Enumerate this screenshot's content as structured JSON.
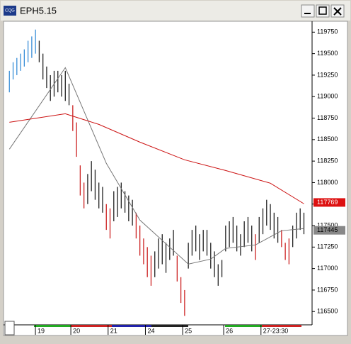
{
  "window": {
    "app_icon": "CQG",
    "title": "EPH5.15"
  },
  "chart_data": {
    "type": "range_bar",
    "x": [
      0,
      1,
      2,
      3,
      4,
      5,
      6,
      7,
      8,
      9,
      10,
      11,
      12,
      13,
      14,
      15,
      16,
      17,
      18,
      19,
      20,
      21,
      22,
      23,
      24,
      25,
      26,
      27,
      28,
      29,
      30,
      31,
      32,
      33,
      34,
      35,
      36,
      37,
      38,
      39,
      40,
      41,
      42,
      43,
      44,
      45,
      46,
      47,
      48,
      49,
      50,
      51,
      52,
      53,
      54,
      55,
      56,
      57,
      58,
      59,
      60,
      61,
      62,
      63,
      64,
      65,
      66,
      67,
      68,
      69,
      70,
      71,
      72,
      73,
      74,
      75,
      76,
      77,
      78,
      79
    ],
    "highs": [
      119300,
      119400,
      119450,
      119500,
      119550,
      119650,
      119700,
      119780,
      119650,
      119500,
      119350,
      119250,
      119300,
      119300,
      119250,
      119300,
      119150,
      118900,
      118700,
      118200,
      118000,
      118100,
      118250,
      118150,
      118000,
      117950,
      117750,
      117700,
      117900,
      117950,
      118000,
      117900,
      117850,
      117800,
      117650,
      117500,
      117350,
      117250,
      117150,
      117200,
      117350,
      117400,
      117300,
      117350,
      117450,
      117150,
      116900,
      116750,
      117300,
      117450,
      117500,
      117400,
      117450,
      117450,
      117300,
      117200,
      117050,
      117100,
      117500,
      117550,
      117600,
      117500,
      117400,
      117550,
      117600,
      117500,
      117400,
      117600,
      117700,
      117800,
      117750,
      117650,
      117600,
      117450,
      117300,
      117350,
      117500,
      117650,
      117700,
      117650
    ],
    "lows": [
      119050,
      119200,
      119250,
      119300,
      119350,
      119400,
      119450,
      119500,
      119400,
      119200,
      119100,
      118950,
      119000,
      119050,
      119000,
      118950,
      118900,
      118600,
      118300,
      117850,
      117700,
      117750,
      117900,
      117800,
      117700,
      117650,
      117450,
      117350,
      117550,
      117600,
      117700,
      117650,
      117550,
      117500,
      117350,
      117150,
      117050,
      116900,
      116800,
      116900,
      117000,
      117050,
      116950,
      117100,
      117150,
      116850,
      116600,
      116450,
      117000,
      117150,
      117200,
      117100,
      117200,
      117150,
      117000,
      116900,
      116800,
      116900,
      117200,
      117250,
      117300,
      117200,
      117150,
      117250,
      117300,
      117200,
      117100,
      117300,
      117400,
      117500,
      117450,
      117350,
      117300,
      117250,
      117100,
      117050,
      117250,
      117350,
      117450,
      117400
    ],
    "bar_colors": [
      "#3a8fd8",
      "#3a8fd8",
      "#3a8fd8",
      "#3a8fd8",
      "#3a8fd8",
      "#3a8fd8",
      "#3a8fd8",
      "#3a8fd8",
      "#222",
      "#222",
      "#222",
      "#222",
      "#222",
      "#222",
      "#222",
      "#222",
      "#222",
      "#cc2222",
      "#cc2222",
      "#cc2222",
      "#cc2222",
      "#222",
      "#222",
      "#222",
      "#222",
      "#222",
      "#cc2222",
      "#cc2222",
      "#222",
      "#222",
      "#222",
      "#222",
      "#222",
      "#222",
      "#cc2222",
      "#cc2222",
      "#cc2222",
      "#cc2222",
      "#cc2222",
      "#222",
      "#222",
      "#222",
      "#222",
      "#222",
      "#222",
      "#cc2222",
      "#cc2222",
      "#cc2222",
      "#222",
      "#222",
      "#222",
      "#222",
      "#222",
      "#222",
      "#222",
      "#222",
      "#222",
      "#222",
      "#222",
      "#222",
      "#222",
      "#222",
      "#222",
      "#222",
      "#222",
      "#222",
      "#cc2222",
      "#222",
      "#222",
      "#222",
      "#222",
      "#222",
      "#222",
      "#cc2222",
      "#cc2222",
      "#cc2222",
      "#222",
      "#222",
      "#222",
      "#222"
    ],
    "lines": [
      {
        "color": "#777777",
        "x": [
          0,
          15,
          26,
          35,
          48,
          54,
          58,
          66,
          73,
          79
        ],
        "values": [
          118389,
          119337,
          118224,
          117564,
          117052,
          117110,
          117234,
          117275,
          117440,
          117465
        ]
      },
      {
        "color": "#cc1111",
        "x": [
          0,
          15,
          24,
          35,
          47,
          58,
          70,
          79
        ],
        "values": [
          118702,
          118801,
          118677,
          118471,
          118265,
          118141,
          117993,
          117754
        ]
      }
    ],
    "price_tags": [
      {
        "value": 117769,
        "color": "#dd1111",
        "text_color": "#ffffff"
      },
      {
        "value": 117445,
        "color": "#888888",
        "text_color": "#000000"
      }
    ],
    "xlim": [
      -1,
      81
    ],
    "xticks": [
      {
        "value": 8.5,
        "label": "19"
      },
      {
        "value": 18,
        "label": "20"
      },
      {
        "value": 28,
        "label": "21"
      },
      {
        "value": 38,
        "label": "24"
      },
      {
        "value": 48,
        "label": "25"
      },
      {
        "value": 59,
        "label": "26"
      },
      {
        "value": 69,
        "label": "27-23:30"
      }
    ],
    "ylim": [
      116370,
      119860
    ],
    "yticks": [
      116500,
      116750,
      117000,
      117250,
      117500,
      117750,
      118000,
      118250,
      118500,
      118750,
      119000,
      119250,
      119500,
      119750
    ]
  }
}
